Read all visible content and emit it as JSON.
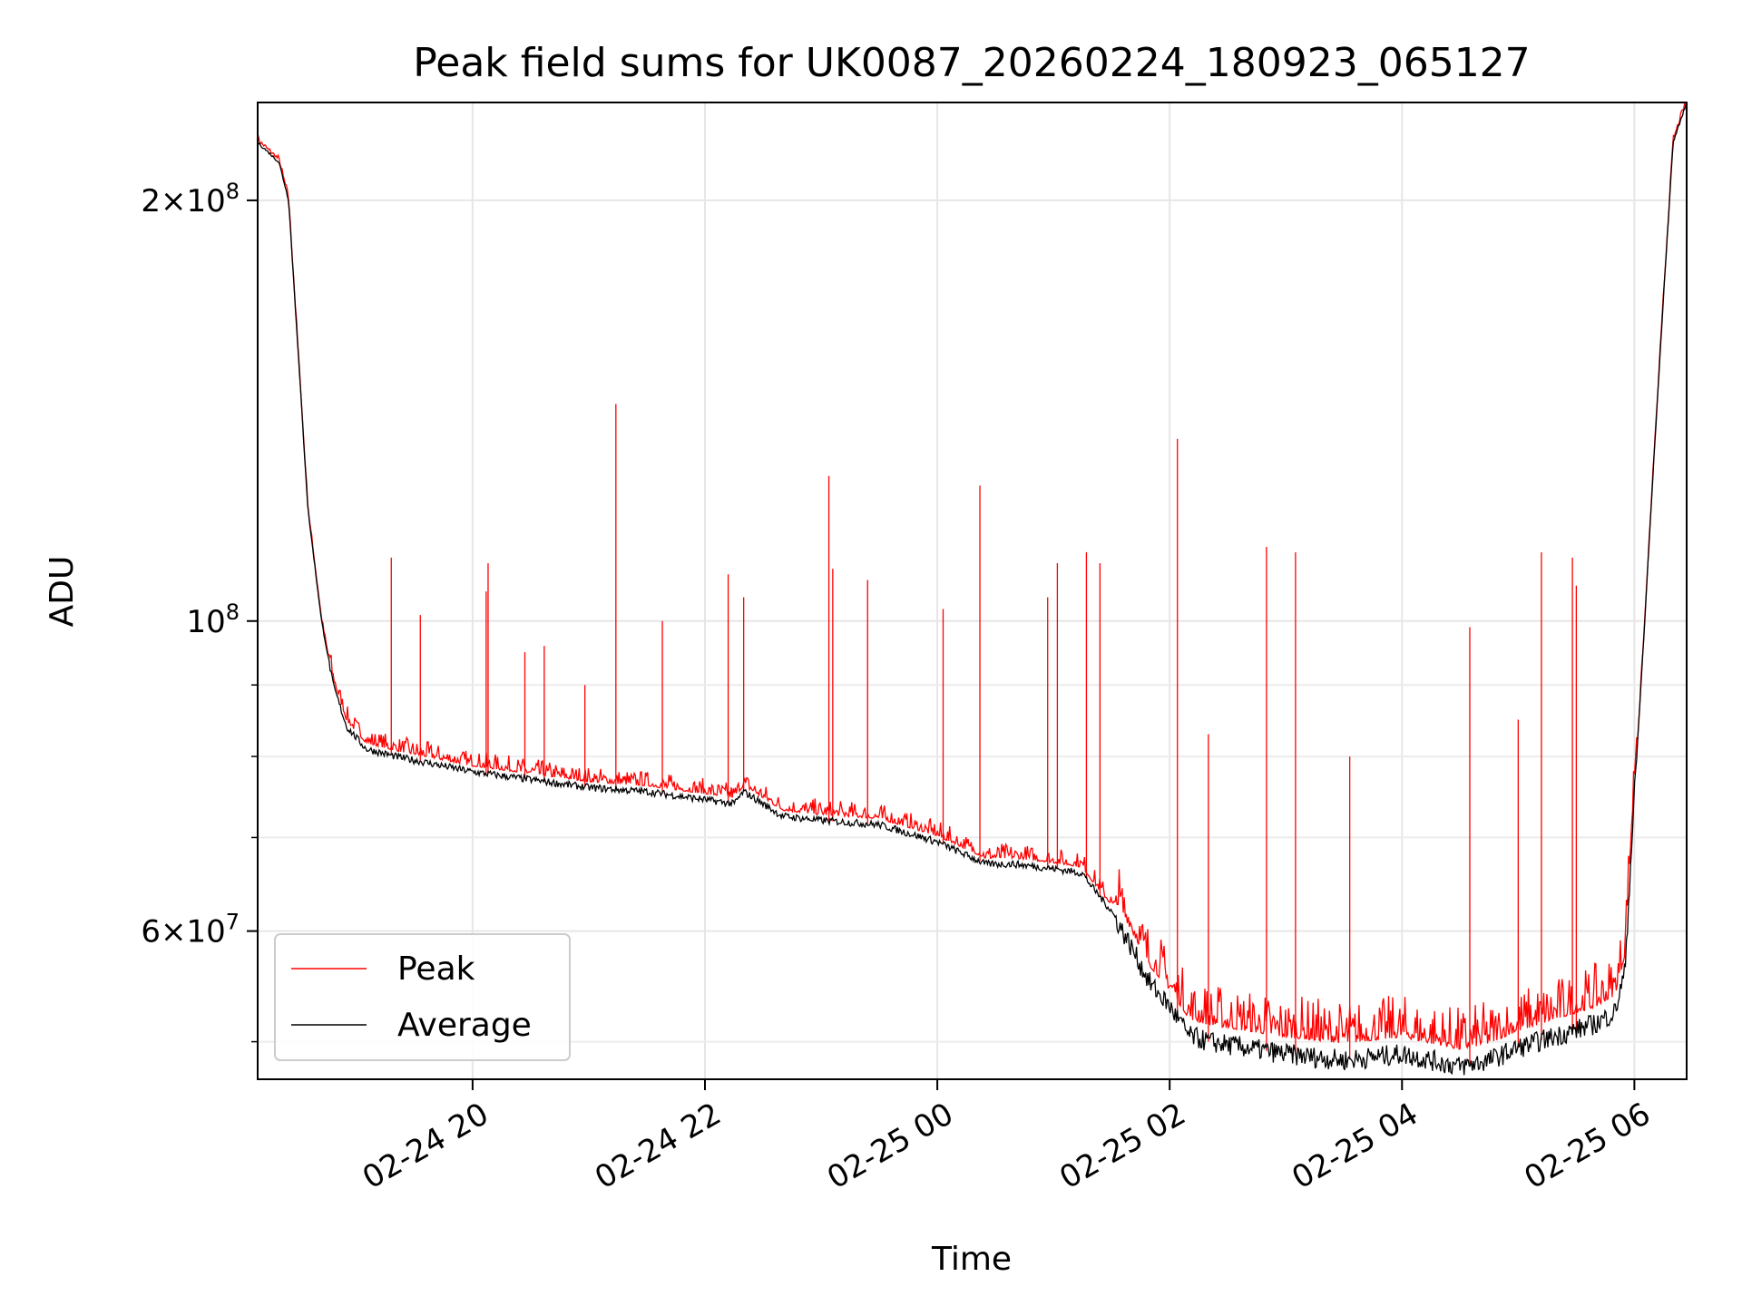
{
  "chart_data": {
    "type": "line",
    "title": "Peak field sums for UK0087_20260224_180923_065127",
    "xlabel": "Time",
    "ylabel": "ADU",
    "x_axis": {
      "type": "datetime",
      "range": [
        "2026-02-24 18:09",
        "2026-02-25 06:27"
      ]
    },
    "y_axis": {
      "scale": "log",
      "range": [
        47000000,
        235000000
      ]
    },
    "grid": true,
    "legend_position": "lower-left",
    "x_ticks": [
      {
        "value": "2026-02-24 20:00",
        "label": "02-24 20"
      },
      {
        "value": "2026-02-24 22:00",
        "label": "02-24 22"
      },
      {
        "value": "2026-02-25 00:00",
        "label": "02-25 00"
      },
      {
        "value": "2026-02-25 02:00",
        "label": "02-25 02"
      },
      {
        "value": "2026-02-25 04:00",
        "label": "02-25 04"
      },
      {
        "value": "2026-02-25 06:00",
        "label": "02-25 06"
      }
    ],
    "y_ticks_major": [
      {
        "value": 200000000,
        "base": "2",
        "exp": "8"
      },
      {
        "value": 100000000,
        "base": "",
        "exp": "8"
      },
      {
        "value": 60000000,
        "base": "6",
        "exp": "7"
      }
    ],
    "y_ticks_minor": [
      50000000,
      70000000,
      80000000,
      90000000
    ],
    "series": [
      {
        "name": "Average",
        "color": "#000000",
        "x": [
          "2026-02-24 18:09",
          "2026-02-24 18:20",
          "2026-02-24 18:25",
          "2026-02-24 18:30",
          "2026-02-24 18:35",
          "2026-02-24 18:42",
          "2026-02-24 18:48",
          "2026-02-24 18:55",
          "2026-02-24 19:05",
          "2026-02-24 19:20",
          "2026-02-24 19:40",
          "2026-02-24 20:00",
          "2026-02-24 20:30",
          "2026-02-24 21:00",
          "2026-02-24 21:30",
          "2026-02-24 22:00",
          "2026-02-24 22:15",
          "2026-02-24 22:20",
          "2026-02-24 22:30",
          "2026-02-24 22:40",
          "2026-02-24 23:00",
          "2026-02-24 23:30",
          "2026-02-24 23:45",
          "2026-02-25 00:00",
          "2026-02-25 00:15",
          "2026-02-25 00:25",
          "2026-02-25 00:40",
          "2026-02-25 01:00",
          "2026-02-25 01:15",
          "2026-02-25 01:20",
          "2026-02-25 01:30",
          "2026-02-25 01:40",
          "2026-02-25 01:50",
          "2026-02-25 02:00",
          "2026-02-25 02:10",
          "2026-02-25 02:20",
          "2026-02-25 02:40",
          "2026-02-25 03:00",
          "2026-02-25 03:30",
          "2026-02-25 04:00",
          "2026-02-25 04:30",
          "2026-02-25 04:45",
          "2026-02-25 05:00",
          "2026-02-25 05:20",
          "2026-02-25 05:40",
          "2026-02-25 05:50",
          "2026-02-25 05:55",
          "2026-02-25 06:00",
          "2026-02-25 06:05",
          "2026-02-25 06:10",
          "2026-02-25 06:15",
          "2026-02-25 06:20",
          "2026-02-25 06:27"
        ],
        "values": [
          220000000,
          213000000,
          200000000,
          155000000,
          120000000,
          100000000,
          90000000,
          84000000,
          81000000,
          80000000,
          79000000,
          78000000,
          77000000,
          76000000,
          75500000,
          74500000,
          74000000,
          75500000,
          74000000,
          72500000,
          72000000,
          71500000,
          70500000,
          69500000,
          68000000,
          67000000,
          67000000,
          66500000,
          66000000,
          64500000,
          62000000,
          58500000,
          55000000,
          53000000,
          50500000,
          50000000,
          49500000,
          49000000,
          48500000,
          49000000,
          48000000,
          48500000,
          49500000,
          50500000,
          51500000,
          52500000,
          56000000,
          75000000,
          98000000,
          130000000,
          170000000,
          220000000,
          235000000
        ]
      },
      {
        "name": "Peak",
        "color": "#ff0000",
        "spikes": [
          {
            "x": "2026-02-24 19:18",
            "y": 111000000
          },
          {
            "x": "2026-02-24 19:33",
            "y": 101000000
          },
          {
            "x": "2026-02-24 20:07",
            "y": 105000000
          },
          {
            "x": "2026-02-24 20:08",
            "y": 110000000
          },
          {
            "x": "2026-02-24 20:27",
            "y": 95000000
          },
          {
            "x": "2026-02-24 20:37",
            "y": 96000000
          },
          {
            "x": "2026-02-24 20:58",
            "y": 90000000
          },
          {
            "x": "2026-02-24 21:14",
            "y": 143000000
          },
          {
            "x": "2026-02-24 21:38",
            "y": 100000000
          },
          {
            "x": "2026-02-24 22:12",
            "y": 108000000
          },
          {
            "x": "2026-02-24 22:20",
            "y": 104000000
          },
          {
            "x": "2026-02-24 23:04",
            "y": 127000000
          },
          {
            "x": "2026-02-24 23:06",
            "y": 109000000
          },
          {
            "x": "2026-02-24 23:24",
            "y": 107000000
          },
          {
            "x": "2026-02-25 00:22",
            "y": 125000000
          },
          {
            "x": "2026-02-25 00:03",
            "y": 102000000
          },
          {
            "x": "2026-02-25 00:57",
            "y": 104000000
          },
          {
            "x": "2026-02-25 01:02",
            "y": 110000000
          },
          {
            "x": "2026-02-25 01:17",
            "y": 112000000
          },
          {
            "x": "2026-02-25 01:24",
            "y": 110000000
          },
          {
            "x": "2026-02-25 02:04",
            "y": 135000000
          },
          {
            "x": "2026-02-25 02:20",
            "y": 83000000
          },
          {
            "x": "2026-02-25 02:50",
            "y": 113000000
          },
          {
            "x": "2026-02-25 03:05",
            "y": 112000000
          },
          {
            "x": "2026-02-25 03:33",
            "y": 80000000
          },
          {
            "x": "2026-02-25 04:35",
            "y": 99000000
          },
          {
            "x": "2026-02-25 05:00",
            "y": 85000000
          },
          {
            "x": "2026-02-25 05:12",
            "y": 112000000
          },
          {
            "x": "2026-02-25 05:28",
            "y": 111000000
          },
          {
            "x": "2026-02-25 05:30",
            "y": 106000000
          }
        ]
      }
    ]
  }
}
